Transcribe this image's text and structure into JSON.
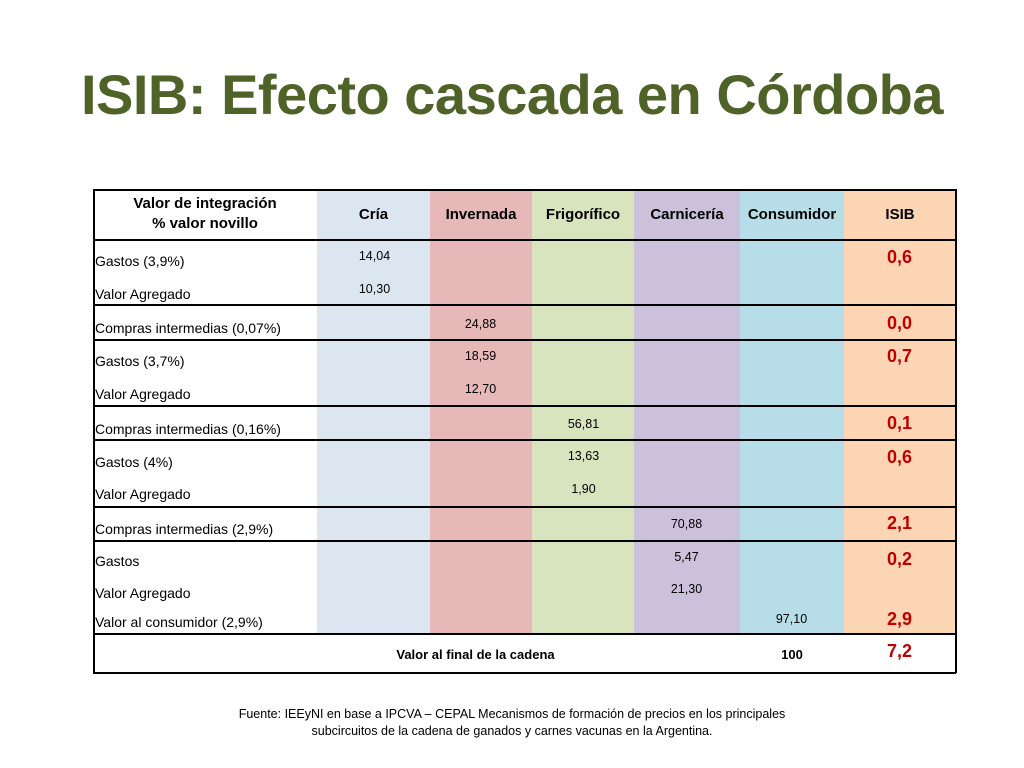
{
  "title": "ISIB: Efecto cascada en Córdoba",
  "colors": {
    "title": "#4f6228",
    "cria": "#dce6f1",
    "invernada": "#e6b9b8",
    "frigorifico": "#d7e4bd",
    "carniceria": "#ccc1da",
    "consumidor": "#b7dee8",
    "isib": "#fcd5b5",
    "isib_value": "#c00000"
  },
  "table": {
    "header": {
      "first_line1": "Valor de integración",
      "first_line2": "% valor novillo",
      "cria": "Cría",
      "invernada": "Invernada",
      "frigorifico": "Frigorífico",
      "carniceria": "Carnicería",
      "consumidor": "Consumidor",
      "isib": "ISIB"
    },
    "rows": [
      {
        "label": "Gastos (3,9%)",
        "value": "14,04",
        "isib": "0,6"
      },
      {
        "label": "Valor Agregado",
        "value": "10,30"
      },
      {
        "label": "Compras intermedias (0,07%)",
        "value": "24,88",
        "isib": "0,0"
      },
      {
        "label": "Gastos  (3,7%)",
        "value": "18,59",
        "isib": "0,7"
      },
      {
        "label": "Valor Agregado",
        "value": "12,70"
      },
      {
        "label": "Compras intermedias (0,16%)",
        "value": "56,81",
        "isib": "0,1"
      },
      {
        "label": "Gastos  (4%)",
        "value": "13,63",
        "isib": "0,6"
      },
      {
        "label": "Valor Agregado",
        "value": "1,90"
      },
      {
        "label": "Compras intermedias (2,9%)",
        "value": "70,88",
        "isib": "2,1"
      },
      {
        "label": "Gastos",
        "value": "5,47",
        "isib": "0,2"
      },
      {
        "label": "Valor Agregado",
        "value": "21,30"
      },
      {
        "label": "Valor al consumidor (2,9%)",
        "value": "97,10",
        "isib": "2,9"
      }
    ],
    "final": {
      "label": "Valor al final de la cadena",
      "value": "100",
      "isib": "7,2"
    }
  },
  "footer": {
    "line1": "Fuente: IEEyNI en base a  IPCVA – CEPAL Mecanismos de formación de precios  en los principales",
    "line2": "subcircuitos de la  cadena de ganados y carnes vacunas en la Argentina."
  }
}
